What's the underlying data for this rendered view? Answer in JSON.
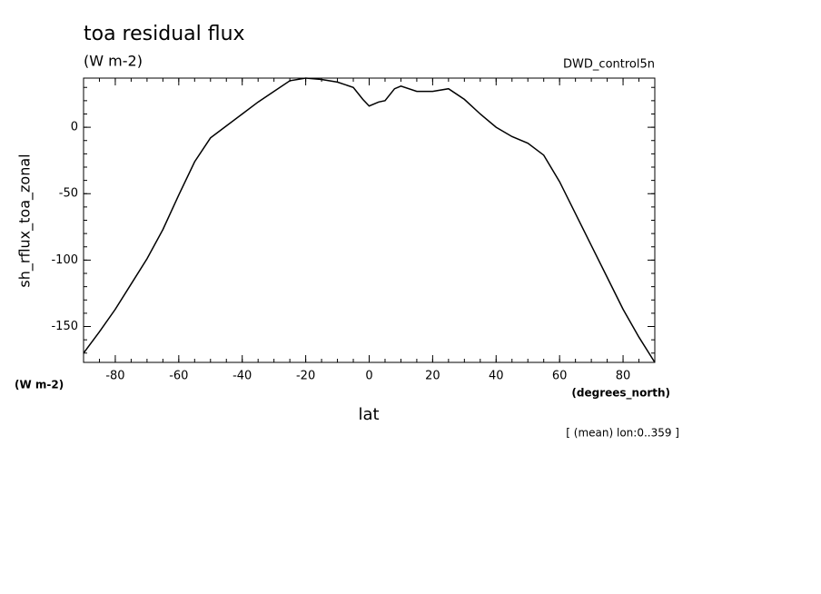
{
  "chart_data": {
    "type": "line",
    "title": "toa residual flux",
    "subtitle": "(W m-2)",
    "dataset_label": "DWD_control5n",
    "y_axis_label": "sh_rflux_toa_zonal",
    "y_units_label": "(W m-2)",
    "x_units_label": "(degrees_north)",
    "x_axis_label": "lat",
    "footnote": "[ (mean) lon:0..359 ]",
    "x": [
      -90,
      -85,
      -80,
      -75,
      -70,
      -65,
      -60,
      -55,
      -50,
      -45,
      -40,
      -35,
      -30,
      -25,
      -20,
      -15,
      -10,
      -5,
      -2,
      0,
      3,
      5,
      8,
      10,
      15,
      20,
      25,
      30,
      35,
      40,
      45,
      50,
      55,
      60,
      65,
      70,
      75,
      80,
      85,
      90
    ],
    "series": [
      {
        "color": "#000000",
        "values": [
          -170,
          -154,
          -137,
          -118,
          -99,
          -77,
          -51,
          -26,
          -8,
          1,
          10,
          19,
          27,
          35,
          37,
          36,
          34,
          30,
          21,
          16,
          19,
          20,
          29,
          31,
          27,
          27,
          29,
          21,
          10,
          0,
          -7,
          -12,
          -21,
          -41,
          -65,
          -89,
          -113,
          -137,
          -158,
          -177
        ]
      }
    ],
    "xlim": [
      -90,
      90
    ],
    "ylim": [
      -177,
      37
    ],
    "xticks": [
      -80,
      -60,
      -40,
      -20,
      0,
      20,
      40,
      60,
      80
    ],
    "yticks": [
      -150,
      -100,
      -50,
      0
    ]
  }
}
